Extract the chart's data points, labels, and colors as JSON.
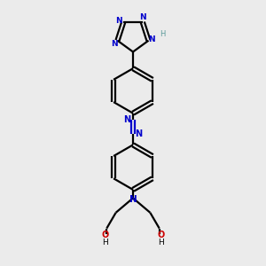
{
  "bg_color": "#ebebeb",
  "bond_color": "#000000",
  "N_color": "#0000cc",
  "O_color": "#cc0000",
  "H_color": "#5c9a9a",
  "line_width": 1.6,
  "figsize": [
    3.0,
    3.0
  ],
  "dpi": 100,
  "xlim": [
    0,
    10
  ],
  "ylim": [
    0,
    10
  ]
}
